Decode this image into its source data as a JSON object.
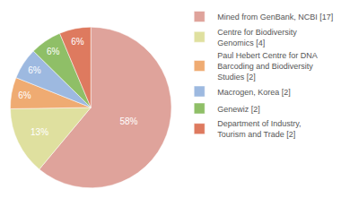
{
  "chart_data": {
    "type": "pie",
    "categories": [
      "Mined from GenBank, NCBI [17]",
      "Centre for Biodiversity Genomics [4]",
      "Paul Hebert Centre for DNA Barcoding and Biodiversity Studies [2]",
      "Macrogen, Korea [2]",
      "Genewiz [2]",
      "Department of Industry, Tourism and Trade [2]"
    ],
    "values": [
      58,
      13,
      6,
      6,
      6,
      6
    ],
    "value_labels": [
      "58%",
      "13%",
      "6%",
      "6%",
      "6%",
      "6%"
    ],
    "colors": [
      "#dfa39b",
      "#dfe09f",
      "#efab72",
      "#9db9e0",
      "#8fbf67",
      "#de7a5f"
    ],
    "data_labels": true,
    "legend": "right"
  }
}
